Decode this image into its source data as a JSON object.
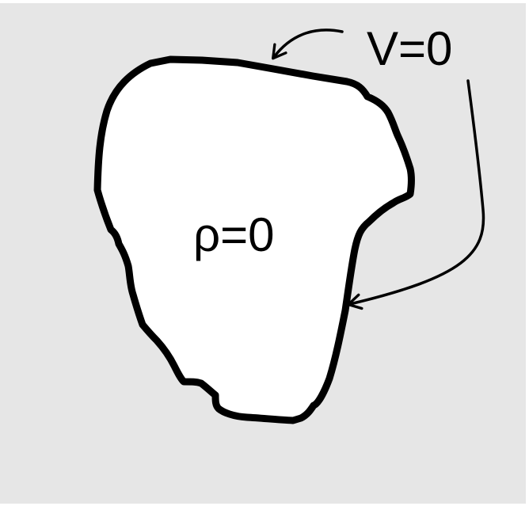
{
  "colors": {
    "background": "#e6e6e6",
    "region_fill": "#ffffff",
    "stroke": "#000000"
  },
  "labels": {
    "boundary": "V=0",
    "interior": "ρ=0"
  }
}
